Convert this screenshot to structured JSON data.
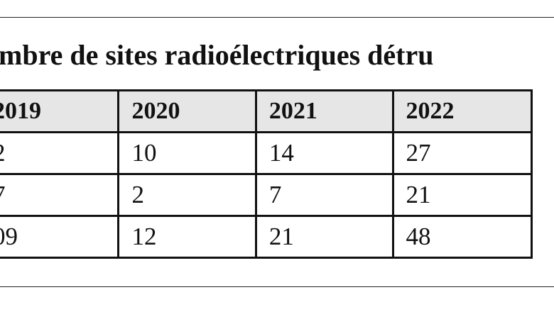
{
  "title": "mbre de sites radioélectriques détru",
  "table": {
    "header": [
      "2019",
      "2020",
      "2021",
      "2022"
    ],
    "rows": [
      [
        "2",
        "10",
        "14",
        "27"
      ],
      [
        "7",
        "2",
        "7",
        "21"
      ],
      [
        "09",
        "12",
        "21",
        "48"
      ]
    ]
  }
}
